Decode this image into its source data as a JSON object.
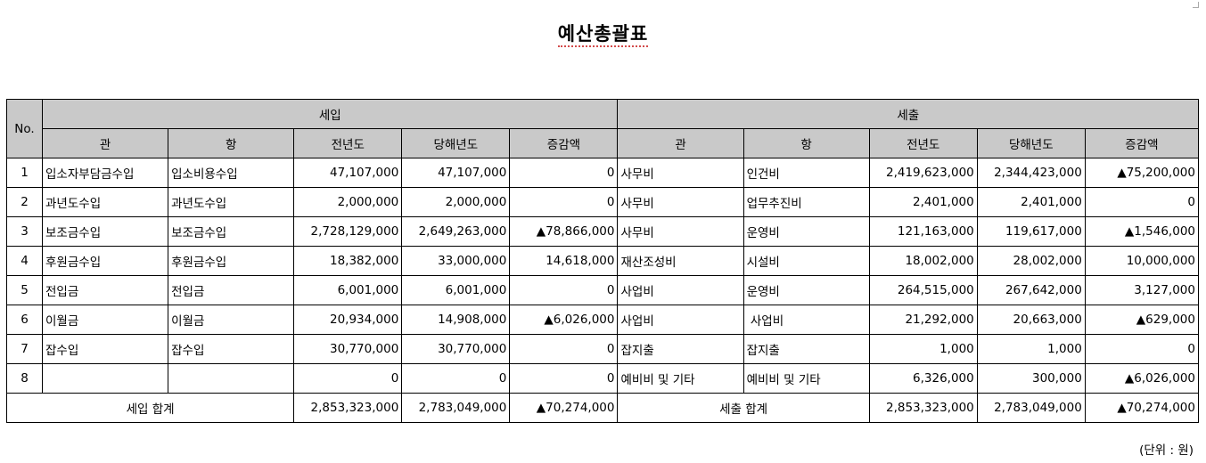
{
  "title": "예산총괄표",
  "unit_note": "(단위 : 원)",
  "headers": {
    "no": "No.",
    "income_group": "세입",
    "expense_group": "세출",
    "cols": [
      "관",
      "항",
      "전년도",
      "당해년도",
      "증감액"
    ]
  },
  "rows": [
    {
      "no": "1",
      "in_gwan": "입소자부담금수입",
      "in_hang": "입소비용수입",
      "in_prev": "47,107,000",
      "in_curr": "47,107,000",
      "in_diff": "0",
      "ex_gwan": "사무비",
      "ex_hang": "인건비",
      "ex_prev": "2,419,623,000",
      "ex_curr": "2,344,423,000",
      "ex_diff": "▲75,200,000"
    },
    {
      "no": "2",
      "in_gwan": "과년도수입",
      "in_hang": "과년도수입",
      "in_prev": "2,000,000",
      "in_curr": "2,000,000",
      "in_diff": "0",
      "ex_gwan": "사무비",
      "ex_hang": "업무추진비",
      "ex_prev": "2,401,000",
      "ex_curr": "2,401,000",
      "ex_diff": "0"
    },
    {
      "no": "3",
      "in_gwan": "보조금수입",
      "in_hang": "보조금수입",
      "in_prev": "2,728,129,000",
      "in_curr": "2,649,263,000",
      "in_diff": "▲78,866,000",
      "ex_gwan": "사무비",
      "ex_hang": "운영비",
      "ex_prev": "121,163,000",
      "ex_curr": "119,617,000",
      "ex_diff": "▲1,546,000"
    },
    {
      "no": "4",
      "in_gwan": "후원금수입",
      "in_hang": "후원금수입",
      "in_prev": "18,382,000",
      "in_curr": "33,000,000",
      "in_diff": "14,618,000",
      "ex_gwan": "재산조성비",
      "ex_hang": "시설비",
      "ex_prev": "18,002,000",
      "ex_curr": "28,002,000",
      "ex_diff": "10,000,000"
    },
    {
      "no": "5",
      "in_gwan": "전입금",
      "in_hang": "전입금",
      "in_prev": "6,001,000",
      "in_curr": "6,001,000",
      "in_diff": "0",
      "ex_gwan": "사업비",
      "ex_hang": "운영비",
      "ex_prev": "264,515,000",
      "ex_curr": "267,642,000",
      "ex_diff": "3,127,000"
    },
    {
      "no": "6",
      "in_gwan": "이월금",
      "in_hang": "이월금",
      "in_prev": "20,934,000",
      "in_curr": "14,908,000",
      "in_diff": "▲6,026,000",
      "ex_gwan": "사업비",
      "ex_hang": " 사업비",
      "ex_prev": "21,292,000",
      "ex_curr": "20,663,000",
      "ex_diff": "▲629,000"
    },
    {
      "no": "7",
      "in_gwan": "잡수입",
      "in_hang": "잡수입",
      "in_prev": "30,770,000",
      "in_curr": "30,770,000",
      "in_diff": "0",
      "ex_gwan": "잡지출",
      "ex_hang": "잡지출",
      "ex_prev": "1,000",
      "ex_curr": "1,000",
      "ex_diff": "0"
    },
    {
      "no": "8",
      "in_gwan": "",
      "in_hang": "",
      "in_prev": "0",
      "in_curr": "0",
      "in_diff": "0",
      "ex_gwan": "예비비 및 기타",
      "ex_hang": "예비비 및 기타",
      "ex_prev": "6,326,000",
      "ex_curr": "300,000",
      "ex_diff": "▲6,026,000"
    }
  ],
  "totals": {
    "in_label": "세입 합계",
    "in_prev": "2,853,323,000",
    "in_curr": "2,783,049,000",
    "in_diff": "▲70,274,000",
    "ex_label": "세출 합계",
    "ex_prev": "2,853,323,000",
    "ex_curr": "2,783,049,000",
    "ex_diff": "▲70,274,000"
  }
}
